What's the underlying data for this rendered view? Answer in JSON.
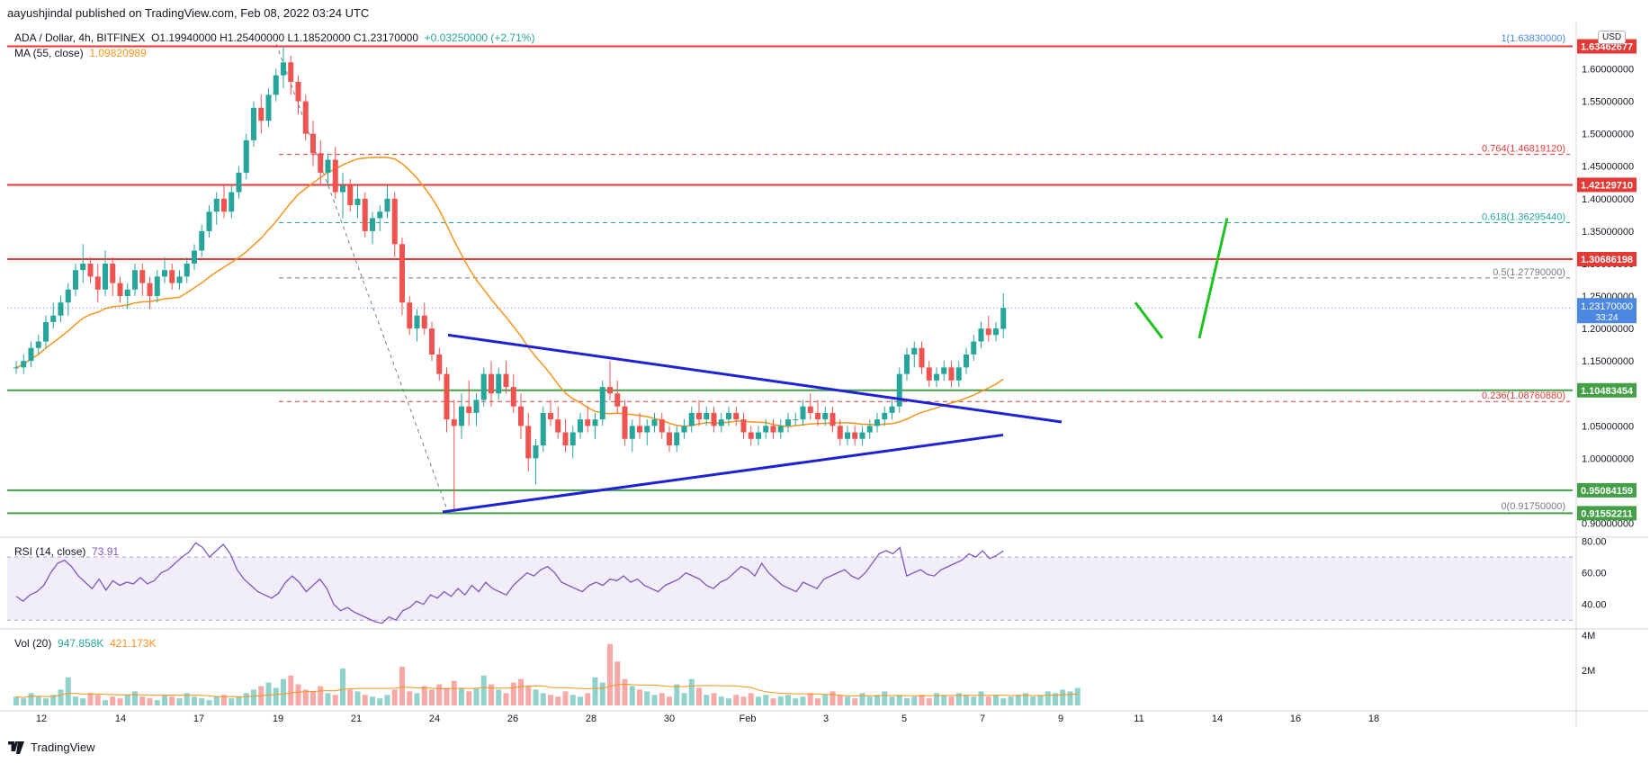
{
  "header": {
    "published": "aayushjindal published on TradingView.com, Feb 08, 2022 03:24 UTC",
    "symbol_line": "ADA / Dollar, 4h, BITFINEX",
    "ohlc": "O1.19940000 H1.25400000 L1.18520000 C1.23170000",
    "change": "+0.03250000 (+2.71%)",
    "ma_label": "MA (55, close)",
    "ma_value": "1.09820989",
    "currency": "USD"
  },
  "rsi_header": {
    "label": "RSI (14, close)",
    "value": "73.91"
  },
  "vol_header": {
    "label": "Vol (20)",
    "value1": "947.858K",
    "value2": "421.173K"
  },
  "brand": "TradingView",
  "colors": {
    "up": "#26a69a",
    "down": "#ef5350",
    "resistance": "#e53935",
    "support": "#43a047",
    "trendline": "#1e22d6",
    "ma": "#f7931a",
    "fib": "#e53935",
    "fib_green": "#26a69a",
    "rsi": "#7e57c2",
    "arrow": "#1ec21e",
    "price_badge": "#4c87e0"
  },
  "chart_data": {
    "type": "candlestick",
    "title": "ADA / Dollar, 4h, BITFINEX",
    "x_ticks": [
      "12",
      "14",
      "17",
      "19",
      "21",
      "24",
      "26",
      "28",
      "30",
      "Feb",
      "3",
      "5",
      "7",
      "9",
      "11",
      "14",
      "16",
      "18"
    ],
    "y_ticks": [
      0.9,
      0.95,
      1.0,
      1.05,
      1.1,
      1.15,
      1.2,
      1.25,
      1.3,
      1.35,
      1.4,
      1.45,
      1.5,
      1.55,
      1.6
    ],
    "y_tick_labels": [
      "0.90000000",
      "0.95000000",
      "1.00000000",
      "1.05000000",
      "1.10000000",
      "1.15000000",
      "1.20000000",
      "1.25000000",
      "1.30000000",
      "1.35000000",
      "1.40000000",
      "1.45000000",
      "1.50000000",
      "1.55000000",
      "1.60000000"
    ],
    "ylim": [
      0.88,
      1.67
    ],
    "last_price": 1.2317,
    "last_price_label": "1.23170000",
    "countdown": "33:24",
    "resistance_levels": [
      {
        "value": 1.63462677,
        "label": "1.63462677"
      },
      {
        "value": 1.4212971,
        "label": "1.42129710"
      },
      {
        "value": 1.30686198,
        "label": "1.30686198"
      }
    ],
    "support_levels": [
      {
        "value": 1.10483454,
        "label": "1.10483454"
      },
      {
        "value": 0.95084159,
        "label": "0.95084159"
      },
      {
        "value": 0.91552211,
        "label": "0.91552211"
      }
    ],
    "fib_levels": [
      {
        "ratio": "1",
        "value": 1.6383,
        "label": "1(1.63830000)",
        "color": "#4c87e0",
        "line": false
      },
      {
        "ratio": "0.764",
        "value": 1.4681912,
        "label": "0.764(1.46819120)",
        "color": "#e53935",
        "line": true
      },
      {
        "ratio": "0.618",
        "value": 1.3629544,
        "label": "0.618(1.36295440)",
        "color": "#26a69a",
        "line": true
      },
      {
        "ratio": "0.5",
        "value": 1.2779,
        "label": "0.5(1.27790000)",
        "color": "#787b86",
        "line": true
      },
      {
        "ratio": "0.236",
        "value": 1.0876088,
        "label": "0.236(1.08760880)",
        "color": "#e53935",
        "line": true
      },
      {
        "ratio": "0",
        "value": 0.9175,
        "label": "0(0.91750000)",
        "color": "#787b86",
        "line": false
      }
    ],
    "rsi": {
      "y_ticks": [
        40,
        60,
        80
      ],
      "y_tick_labels": [
        "40.00",
        "60.00",
        "80.00"
      ],
      "band": [
        30,
        70
      ],
      "ylim": [
        25,
        82
      ],
      "values": [
        45,
        42,
        46,
        48,
        52,
        60,
        66,
        68,
        64,
        58,
        54,
        50,
        56,
        49,
        55,
        52,
        54,
        53,
        57,
        53,
        55,
        60,
        62,
        66,
        70,
        73,
        79,
        76,
        70,
        74,
        78,
        72,
        62,
        56,
        52,
        48,
        46,
        44,
        47,
        54,
        58,
        54,
        48,
        52,
        56,
        50,
        40,
        36,
        38,
        35,
        33,
        31,
        29,
        28,
        32,
        30,
        36,
        38,
        42,
        40,
        46,
        44,
        48,
        45,
        50,
        46,
        52,
        48,
        54,
        50,
        48,
        46,
        52,
        56,
        60,
        58,
        62,
        64,
        60,
        54,
        52,
        50,
        48,
        52,
        54,
        52,
        56,
        55,
        58,
        54,
        56,
        52,
        50,
        48,
        52,
        54,
        56,
        60,
        58,
        56,
        52,
        50,
        54,
        56,
        60,
        64,
        62,
        58,
        66,
        60,
        56,
        52,
        50,
        48,
        54,
        52,
        50,
        56,
        58,
        60,
        62,
        58,
        56,
        60,
        66,
        72,
        74,
        72,
        76,
        58,
        60,
        62,
        59,
        58,
        62,
        64,
        66,
        68,
        72,
        70,
        74,
        69,
        71,
        73.91
      ]
    },
    "volume": {
      "y_ticks": [
        2,
        4
      ],
      "y_tick_labels": [
        "2M",
        "4M"
      ],
      "ylim": [
        0,
        4.3
      ],
      "values": [
        0.5,
        0.4,
        0.7,
        0.5,
        0.4,
        0.6,
        0.9,
        1.6,
        0.5,
        0.4,
        0.7,
        0.6,
        0.3,
        0.5,
        0.4,
        0.6,
        0.8,
        0.5,
        0.4,
        0.3,
        0.6,
        0.5,
        0.4,
        0.7,
        0.5,
        0.4,
        0.3,
        0.5,
        0.6,
        0.4,
        0.5,
        0.7,
        0.9,
        1.1,
        1.3,
        1.0,
        1.5,
        1.7,
        1.2,
        0.9,
        0.8,
        1.1,
        0.7,
        0.6,
        2.1,
        0.9,
        0.8,
        0.6,
        0.5,
        0.4,
        0.6,
        0.9,
        2.2,
        0.8,
        0.7,
        1.1,
        0.9,
        1.2,
        1.0,
        1.4,
        1.0,
        0.8,
        1.0,
        1.7,
        1.2,
        0.9,
        0.7,
        1.3,
        1.5,
        1.1,
        0.9,
        0.7,
        0.6,
        0.5,
        0.8,
        0.6,
        0.5,
        0.7,
        1.6,
        1.3,
        3.5,
        2.5,
        1.5,
        1.1,
        0.9,
        0.8,
        0.6,
        0.7,
        0.5,
        1.2,
        0.7,
        1.5,
        1.0,
        0.6,
        0.7,
        0.5,
        0.4,
        0.6,
        0.5,
        0.7,
        0.5,
        0.6,
        0.4,
        0.5,
        0.6,
        0.4,
        0.5,
        0.7,
        0.4,
        0.6,
        0.8,
        0.6,
        0.5,
        0.4,
        0.7,
        0.5,
        0.6,
        0.8,
        0.5,
        0.6,
        0.4,
        0.5,
        0.6,
        0.4,
        0.7,
        0.6,
        0.5,
        0.7,
        0.6,
        0.5,
        0.8,
        0.5,
        0.6,
        0.4,
        0.5,
        0.6,
        0.7,
        0.5,
        0.6,
        0.8,
        0.7,
        0.9,
        0.8,
        1.0
      ]
    },
    "ohlc_series": [
      [
        1.14,
        1.15,
        1.13,
        1.14
      ],
      [
        1.14,
        1.16,
        1.13,
        1.15
      ],
      [
        1.15,
        1.18,
        1.14,
        1.17
      ],
      [
        1.17,
        1.19,
        1.16,
        1.18
      ],
      [
        1.18,
        1.22,
        1.17,
        1.21
      ],
      [
        1.21,
        1.24,
        1.2,
        1.22
      ],
      [
        1.22,
        1.25,
        1.21,
        1.24
      ],
      [
        1.24,
        1.27,
        1.22,
        1.26
      ],
      [
        1.26,
        1.3,
        1.25,
        1.29
      ],
      [
        1.29,
        1.33,
        1.27,
        1.3
      ],
      [
        1.3,
        1.31,
        1.27,
        1.28
      ],
      [
        1.28,
        1.3,
        1.24,
        1.26
      ],
      [
        1.26,
        1.32,
        1.25,
        1.3
      ],
      [
        1.3,
        1.31,
        1.25,
        1.27
      ],
      [
        1.27,
        1.28,
        1.24,
        1.25
      ],
      [
        1.25,
        1.27,
        1.23,
        1.26
      ],
      [
        1.26,
        1.3,
        1.25,
        1.29
      ],
      [
        1.29,
        1.3,
        1.25,
        1.27
      ],
      [
        1.27,
        1.28,
        1.23,
        1.25
      ],
      [
        1.25,
        1.29,
        1.24,
        1.28
      ],
      [
        1.28,
        1.31,
        1.27,
        1.29
      ],
      [
        1.29,
        1.3,
        1.26,
        1.27
      ],
      [
        1.27,
        1.29,
        1.26,
        1.28
      ],
      [
        1.28,
        1.31,
        1.27,
        1.3
      ],
      [
        1.3,
        1.33,
        1.29,
        1.32
      ],
      [
        1.32,
        1.36,
        1.31,
        1.35
      ],
      [
        1.35,
        1.39,
        1.34,
        1.38
      ],
      [
        1.38,
        1.41,
        1.36,
        1.4
      ],
      [
        1.4,
        1.42,
        1.37,
        1.38
      ],
      [
        1.38,
        1.42,
        1.37,
        1.41
      ],
      [
        1.41,
        1.45,
        1.4,
        1.44
      ],
      [
        1.44,
        1.5,
        1.43,
        1.49
      ],
      [
        1.49,
        1.55,
        1.48,
        1.54
      ],
      [
        1.54,
        1.56,
        1.5,
        1.52
      ],
      [
        1.52,
        1.57,
        1.51,
        1.56
      ],
      [
        1.56,
        1.6,
        1.55,
        1.59
      ],
      [
        1.59,
        1.635,
        1.57,
        1.61
      ],
      [
        1.61,
        1.62,
        1.56,
        1.58
      ],
      [
        1.58,
        1.59,
        1.53,
        1.55
      ],
      [
        1.55,
        1.56,
        1.49,
        1.5
      ],
      [
        1.5,
        1.52,
        1.45,
        1.47
      ],
      [
        1.47,
        1.49,
        1.42,
        1.44
      ],
      [
        1.44,
        1.47,
        1.42,
        1.46
      ],
      [
        1.46,
        1.48,
        1.4,
        1.41
      ],
      [
        1.41,
        1.44,
        1.37,
        1.42
      ],
      [
        1.42,
        1.43,
        1.38,
        1.39
      ],
      [
        1.39,
        1.42,
        1.37,
        1.4
      ],
      [
        1.4,
        1.41,
        1.34,
        1.35
      ],
      [
        1.35,
        1.38,
        1.33,
        1.37
      ],
      [
        1.37,
        1.39,
        1.35,
        1.38
      ],
      [
        1.38,
        1.42,
        1.37,
        1.4
      ],
      [
        1.4,
        1.41,
        1.31,
        1.33
      ],
      [
        1.33,
        1.34,
        1.22,
        1.24
      ],
      [
        1.24,
        1.25,
        1.19,
        1.2
      ],
      [
        1.2,
        1.23,
        1.18,
        1.22
      ],
      [
        1.22,
        1.24,
        1.19,
        1.2
      ],
      [
        1.2,
        1.21,
        1.15,
        1.16
      ],
      [
        1.16,
        1.17,
        1.12,
        1.13
      ],
      [
        1.13,
        1.14,
        1.04,
        1.06
      ],
      [
        1.06,
        1.09,
        0.9175,
        1.05
      ],
      [
        1.05,
        1.1,
        1.03,
        1.08
      ],
      [
        1.08,
        1.12,
        1.05,
        1.07
      ],
      [
        1.07,
        1.1,
        1.05,
        1.09
      ],
      [
        1.09,
        1.14,
        1.08,
        1.13
      ],
      [
        1.13,
        1.15,
        1.08,
        1.1
      ],
      [
        1.1,
        1.14,
        1.09,
        1.13
      ],
      [
        1.13,
        1.15,
        1.1,
        1.11
      ],
      [
        1.11,
        1.13,
        1.07,
        1.08
      ],
      [
        1.08,
        1.1,
        1.03,
        1.05
      ],
      [
        1.05,
        1.07,
        0.98,
        1.0
      ],
      [
        1.0,
        1.03,
        0.96,
        1.02
      ],
      [
        1.02,
        1.08,
        1.01,
        1.07
      ],
      [
        1.07,
        1.09,
        1.05,
        1.06
      ],
      [
        1.06,
        1.08,
        1.03,
        1.04
      ],
      [
        1.04,
        1.06,
        1.01,
        1.02
      ],
      [
        1.02,
        1.05,
        1.0,
        1.04
      ],
      [
        1.04,
        1.07,
        1.03,
        1.06
      ],
      [
        1.06,
        1.08,
        1.04,
        1.05
      ],
      [
        1.05,
        1.07,
        1.03,
        1.06
      ],
      [
        1.06,
        1.12,
        1.05,
        1.11
      ],
      [
        1.11,
        1.15,
        1.09,
        1.1
      ],
      [
        1.1,
        1.12,
        1.07,
        1.08
      ],
      [
        1.08,
        1.09,
        1.02,
        1.03
      ],
      [
        1.03,
        1.06,
        1.01,
        1.05
      ],
      [
        1.05,
        1.07,
        1.03,
        1.04
      ],
      [
        1.04,
        1.06,
        1.02,
        1.05
      ],
      [
        1.05,
        1.07,
        1.04,
        1.06
      ],
      [
        1.06,
        1.07,
        1.03,
        1.04
      ],
      [
        1.04,
        1.05,
        1.01,
        1.02
      ],
      [
        1.02,
        1.05,
        1.01,
        1.04
      ],
      [
        1.04,
        1.06,
        1.03,
        1.05
      ],
      [
        1.05,
        1.08,
        1.04,
        1.07
      ],
      [
        1.07,
        1.09,
        1.05,
        1.06
      ],
      [
        1.06,
        1.08,
        1.05,
        1.07
      ],
      [
        1.07,
        1.08,
        1.04,
        1.05
      ],
      [
        1.05,
        1.07,
        1.04,
        1.06
      ],
      [
        1.06,
        1.08,
        1.05,
        1.07
      ],
      [
        1.07,
        1.08,
        1.05,
        1.06
      ],
      [
        1.06,
        1.07,
        1.03,
        1.04
      ],
      [
        1.04,
        1.05,
        1.02,
        1.03
      ],
      [
        1.03,
        1.05,
        1.02,
        1.04
      ],
      [
        1.04,
        1.06,
        1.03,
        1.05
      ],
      [
        1.05,
        1.06,
        1.03,
        1.04
      ],
      [
        1.04,
        1.06,
        1.03,
        1.05
      ],
      [
        1.05,
        1.07,
        1.04,
        1.06
      ],
      [
        1.06,
        1.07,
        1.05,
        1.06
      ],
      [
        1.06,
        1.09,
        1.05,
        1.08
      ],
      [
        1.08,
        1.1,
        1.06,
        1.07
      ],
      [
        1.07,
        1.09,
        1.05,
        1.06
      ],
      [
        1.06,
        1.08,
        1.05,
        1.07
      ],
      [
        1.07,
        1.08,
        1.04,
        1.05
      ],
      [
        1.05,
        1.06,
        1.02,
        1.03
      ],
      [
        1.03,
        1.05,
        1.02,
        1.04
      ],
      [
        1.04,
        1.05,
        1.02,
        1.03
      ],
      [
        1.03,
        1.05,
        1.02,
        1.04
      ],
      [
        1.04,
        1.06,
        1.03,
        1.05
      ],
      [
        1.05,
        1.07,
        1.04,
        1.06
      ],
      [
        1.06,
        1.08,
        1.05,
        1.07
      ],
      [
        1.07,
        1.09,
        1.06,
        1.08
      ],
      [
        1.08,
        1.14,
        1.07,
        1.13
      ],
      [
        1.13,
        1.17,
        1.12,
        1.16
      ],
      [
        1.16,
        1.18,
        1.14,
        1.17
      ],
      [
        1.17,
        1.18,
        1.13,
        1.14
      ],
      [
        1.14,
        1.15,
        1.11,
        1.12
      ],
      [
        1.12,
        1.14,
        1.11,
        1.13
      ],
      [
        1.13,
        1.15,
        1.12,
        1.14
      ],
      [
        1.14,
        1.15,
        1.11,
        1.12
      ],
      [
        1.12,
        1.15,
        1.11,
        1.14
      ],
      [
        1.14,
        1.17,
        1.13,
        1.16
      ],
      [
        1.16,
        1.19,
        1.15,
        1.18
      ],
      [
        1.18,
        1.21,
        1.17,
        1.2
      ],
      [
        1.2,
        1.22,
        1.18,
        1.19
      ],
      [
        1.19,
        1.21,
        1.18,
        1.2
      ],
      [
        1.1994,
        1.254,
        1.1852,
        1.2317
      ]
    ]
  }
}
